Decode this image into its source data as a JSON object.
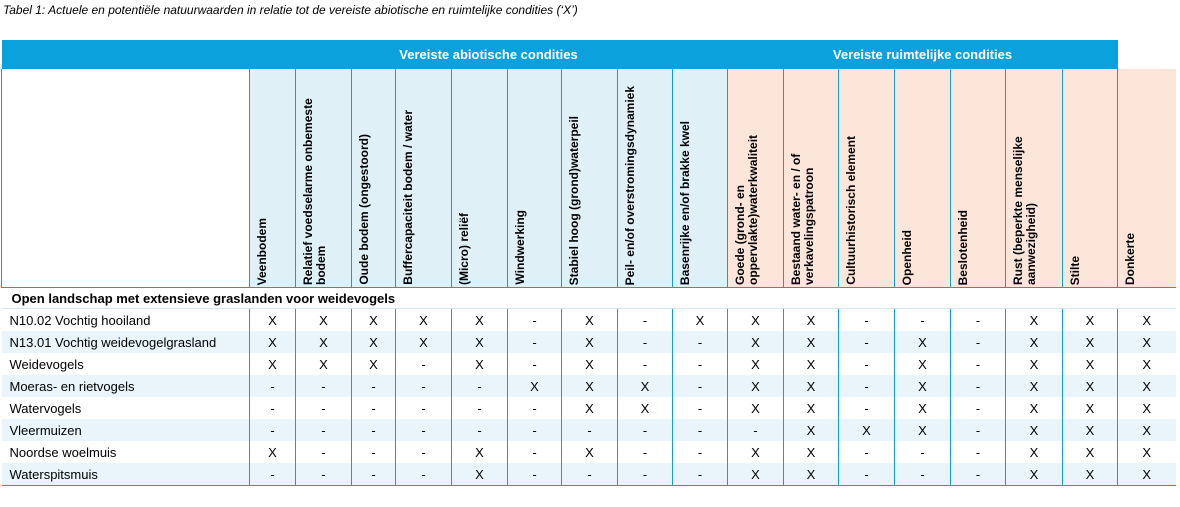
{
  "caption": "Tabel 1: Actuele en potentiële natuurwaarden in relatie tot de vereiste abiotische en ruimtelijke condities (‘X’)",
  "groups": {
    "abiotic": "Vereiste abiotische condities",
    "spatial": "Vereiste ruimtelijke condities"
  },
  "columns": [
    "Veenbodem",
    "Relatief voedselarme onbemeste bodem",
    "Oude bodem (ongestoord)",
    "Buffercapaciteit bodem / water",
    "(Micro) reliëf",
    "Windwerking",
    "Stabiel hoog (grond)waterpeil",
    "Peil- en/of overstromingsdynamiek",
    "Basenrijke en/of brakke kwel",
    "Goede (grond- en oppervlakte)waterkwaliteit",
    "Bestaand water- en / of verkavelingspatroon",
    "Cultuurhistorisch element",
    "Openheid",
    "Beslotenheid",
    "Rust (beperkte menselijke aanwezigheid)",
    "Stilte",
    "Donkerte"
  ],
  "section_title": "Open landschap met extensieve graslanden voor weidevogels",
  "rows": [
    {
      "name": "N10.02 Vochtig hooiland",
      "values": [
        "X",
        "X",
        "X",
        "X",
        "X",
        "-",
        "X",
        "-",
        "X",
        "X",
        "X",
        "-",
        "-",
        "-",
        "X",
        "X",
        "X"
      ]
    },
    {
      "name": "N13.01 Vochtig weidevogelgrasland",
      "values": [
        "X",
        "X",
        "X",
        "X",
        "X",
        "-",
        "X",
        "-",
        "-",
        "X",
        "X",
        "-",
        "X",
        "-",
        "X",
        "X",
        "X"
      ]
    },
    {
      "name": "Weidevogels",
      "values": [
        "X",
        "X",
        "X",
        "-",
        "X",
        "-",
        "X",
        "-",
        "-",
        "X",
        "X",
        "-",
        "X",
        "-",
        "X",
        "X",
        "X"
      ]
    },
    {
      "name": "Moeras- en rietvogels",
      "values": [
        "-",
        "-",
        "-",
        "-",
        "-",
        "X",
        "X",
        "X",
        "-",
        "X",
        "X",
        "-",
        "X",
        "-",
        "X",
        "X",
        "X"
      ]
    },
    {
      "name": "Watervogels",
      "values": [
        "-",
        "-",
        "-",
        "-",
        "-",
        "-",
        "X",
        "X",
        "-",
        "X",
        "X",
        "-",
        "X",
        "-",
        "X",
        "X",
        "X"
      ]
    },
    {
      "name": "Vleermuizen",
      "values": [
        "-",
        "-",
        "-",
        "-",
        "-",
        "-",
        "-",
        "-",
        "-",
        "-",
        "X",
        "X",
        "X",
        "-",
        "X",
        "X",
        "X"
      ]
    },
    {
      "name": "Noordse woelmuis",
      "values": [
        "X",
        "-",
        "-",
        "-",
        "X",
        "-",
        "X",
        "-",
        "-",
        "X",
        "X",
        "-",
        "-",
        "-",
        "X",
        "X",
        "X"
      ]
    },
    {
      "name": "Waterspitsmuis",
      "values": [
        "-",
        "-",
        "-",
        "-",
        "X",
        "-",
        "-",
        "-",
        "-",
        "X",
        "X",
        "-",
        "-",
        "-",
        "X",
        "X",
        "X"
      ]
    }
  ]
}
